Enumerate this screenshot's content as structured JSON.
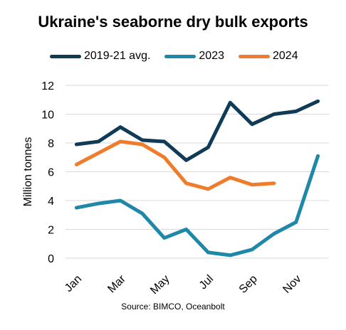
{
  "chart_data": {
    "type": "line",
    "title": "Ukraine's seaborne dry bulk exports",
    "ylabel": "Million tonnes",
    "xlabel": "",
    "ylim": [
      0,
      12
    ],
    "yticks": [
      0,
      2,
      4,
      6,
      8,
      10,
      12
    ],
    "grid": true,
    "legend": "top",
    "months": [
      "Jan",
      "Feb",
      "Mar",
      "Apr",
      "May",
      "Jun",
      "Jul",
      "Aug",
      "Sep",
      "Oct",
      "Nov",
      "Dec"
    ],
    "xtick_labels": [
      "Jan",
      "Mar",
      "May",
      "Jul",
      "Sep",
      "Nov"
    ],
    "series": [
      {
        "name": "2019-21 avg.",
        "color": "#0f3b57",
        "values": [
          7.9,
          8.1,
          9.1,
          8.2,
          8.1,
          6.8,
          7.7,
          10.8,
          9.3,
          10.0,
          10.2,
          10.9
        ]
      },
      {
        "name": "2023",
        "color": "#1f87a8",
        "values": [
          3.5,
          3.8,
          4.0,
          3.1,
          1.4,
          2.0,
          0.4,
          0.2,
          0.6,
          1.7,
          2.5,
          7.1
        ]
      },
      {
        "name": "2024",
        "color": "#ef7c2a",
        "values": [
          6.5,
          7.3,
          8.1,
          7.9,
          7.0,
          5.2,
          4.8,
          5.6,
          5.1,
          5.2
        ]
      }
    ],
    "source": "Source: BIMCO, Oceanbolt"
  }
}
